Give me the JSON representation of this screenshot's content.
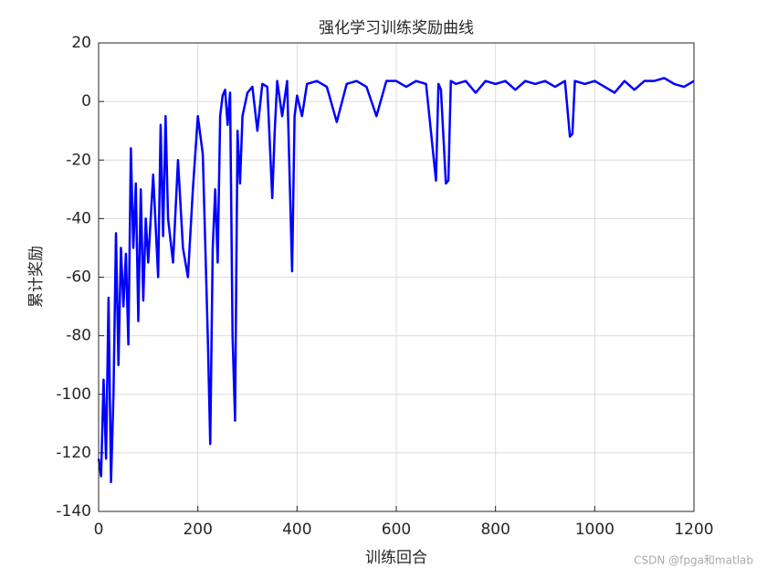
{
  "chart_data": {
    "type": "line",
    "title": "强化学习训练奖励曲线",
    "x_label": "训练回合",
    "y_label": "累计奖励",
    "x": [
      0,
      5,
      10,
      15,
      20,
      25,
      30,
      35,
      40,
      45,
      50,
      55,
      60,
      65,
      70,
      75,
      80,
      85,
      90,
      95,
      100,
      110,
      120,
      125,
      130,
      135,
      140,
      150,
      160,
      170,
      180,
      190,
      200,
      210,
      220,
      225,
      230,
      235,
      240,
      245,
      250,
      255,
      260,
      265,
      270,
      275,
      280,
      285,
      290,
      300,
      310,
      320,
      330,
      340,
      350,
      355,
      360,
      370,
      380,
      390,
      395,
      400,
      410,
      420,
      440,
      460,
      480,
      500,
      520,
      540,
      560,
      580,
      600,
      620,
      640,
      660,
      680,
      685,
      690,
      700,
      705,
      710,
      720,
      740,
      760,
      780,
      800,
      820,
      840,
      860,
      880,
      900,
      920,
      940,
      950,
      955,
      960,
      980,
      1000,
      1020,
      1040,
      1060,
      1080,
      1100,
      1120,
      1140,
      1160,
      1180,
      1200
    ],
    "series": [
      {
        "name": "reward",
        "color": "#0000ff",
        "values": [
          -122,
          -128,
          -95,
          -122,
          -67,
          -130,
          -100,
          -45,
          -90,
          -50,
          -70,
          -52,
          -83,
          -16,
          -50,
          -28,
          -75,
          -30,
          -68,
          -40,
          -55,
          -25,
          -60,
          -8,
          -46,
          -5,
          -40,
          -55,
          -20,
          -50,
          -60,
          -30,
          -5,
          -18,
          -80,
          -117,
          -50,
          -30,
          -55,
          -5,
          2,
          4,
          -8,
          3,
          -80,
          -109,
          -10,
          -28,
          -5,
          3,
          5,
          -10,
          6,
          5,
          -33,
          -10,
          7,
          -5,
          7,
          -58,
          -5,
          2,
          -5,
          6,
          7,
          5,
          -7,
          6,
          7,
          5,
          -5,
          7,
          7,
          5,
          7,
          6,
          -27,
          6,
          4,
          -28,
          -27,
          7,
          6,
          7,
          3,
          7,
          6,
          7,
          4,
          7,
          6,
          7,
          5,
          7,
          -12,
          -11,
          7,
          6,
          7,
          5,
          3,
          7,
          4,
          7,
          7,
          8,
          6,
          5,
          7
        ]
      }
    ],
    "xlim": [
      0,
      1200
    ],
    "xticks": [
      0,
      200,
      400,
      600,
      800,
      1000,
      1200
    ],
    "ylim": [
      -140,
      20
    ],
    "yticks": [
      -140,
      -120,
      -100,
      -80,
      -60,
      -40,
      -20,
      0,
      20
    ],
    "grid": true,
    "watermark": "CSDN @fpga和matlab"
  }
}
